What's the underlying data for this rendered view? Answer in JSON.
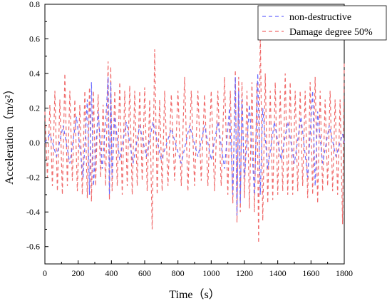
{
  "chart_data": {
    "type": "line",
    "title": "",
    "xlabel": "Time（s）",
    "ylabel": "Acceleration（m/s²）",
    "xlim": [
      0,
      1800
    ],
    "ylim": [
      -0.7,
      0.8
    ],
    "xticks": [
      0,
      200,
      400,
      600,
      800,
      1000,
      1200,
      1400,
      1600,
      1800
    ],
    "yticks": [
      -0.6,
      -0.4,
      -0.2,
      0.0,
      0.2,
      0.4,
      0.6,
      0.8
    ],
    "xtick_labels": [
      "0",
      "200",
      "400",
      "600",
      "800",
      "1000",
      "1200",
      "1400",
      "1600",
      "1800"
    ],
    "ytick_labels": [
      "-0.6",
      "-0.4",
      "-0.2",
      "0.0",
      "0.2",
      "0.4",
      "0.6",
      "0.8"
    ],
    "grid": false,
    "legend_position": "top-right",
    "series": [
      {
        "name": "non-destructive",
        "color": "#6b6bff",
        "style": "dashed",
        "x": [
          0,
          30,
          70,
          110,
          150,
          190,
          230,
          255,
          268,
          280,
          292,
          320,
          345,
          370,
          380,
          388,
          396,
          404,
          420,
          450,
          490,
          530,
          570,
          610,
          650,
          700,
          760,
          820,
          870,
          920,
          960,
          1000,
          1040,
          1080,
          1110,
          1130,
          1145,
          1155,
          1165,
          1175,
          1185,
          1200,
          1230,
          1260,
          1280,
          1295,
          1310,
          1340,
          1380,
          1420,
          1460,
          1500,
          1540,
          1580,
          1610,
          1625,
          1640,
          1670,
          1710,
          1750,
          1790,
          1800
        ],
        "y": [
          0.0,
          0.05,
          -0.08,
          0.1,
          -0.12,
          0.15,
          -0.2,
          0.25,
          -0.3,
          0.35,
          -0.25,
          0.18,
          -0.15,
          0.2,
          0.38,
          -0.3,
          0.35,
          -0.2,
          0.15,
          -0.1,
          0.12,
          -0.12,
          0.1,
          -0.08,
          0.12,
          -0.1,
          0.08,
          -0.12,
          0.1,
          -0.08,
          0.1,
          -0.1,
          0.12,
          -0.15,
          0.2,
          -0.3,
          0.38,
          -0.42,
          0.3,
          -0.35,
          0.25,
          -0.2,
          0.22,
          -0.3,
          0.4,
          -0.3,
          0.2,
          -0.15,
          0.12,
          -0.1,
          0.12,
          -0.12,
          0.15,
          -0.2,
          0.3,
          -0.25,
          0.18,
          -0.12,
          0.1,
          -0.08,
          0.05,
          0.0
        ]
      },
      {
        "name": "Damage degree 50%",
        "color": "#f06a6a",
        "style": "dashed",
        "x": [
          0,
          15,
          30,
          45,
          60,
          75,
          90,
          105,
          120,
          135,
          150,
          165,
          180,
          195,
          210,
          225,
          240,
          255,
          268,
          280,
          292,
          305,
          320,
          335,
          350,
          365,
          380,
          388,
          396,
          404,
          420,
          435,
          450,
          465,
          480,
          495,
          510,
          525,
          540,
          555,
          570,
          585,
          600,
          615,
          630,
          645,
          660,
          675,
          690,
          705,
          720,
          740,
          760,
          780,
          800,
          820,
          840,
          860,
          880,
          900,
          920,
          940,
          960,
          980,
          1000,
          1020,
          1040,
          1060,
          1080,
          1100,
          1115,
          1130,
          1145,
          1155,
          1165,
          1175,
          1185,
          1200,
          1215,
          1230,
          1245,
          1260,
          1275,
          1285,
          1295,
          1310,
          1325,
          1340,
          1355,
          1370,
          1385,
          1400,
          1415,
          1430,
          1445,
          1460,
          1475,
          1490,
          1505,
          1520,
          1535,
          1550,
          1565,
          1580,
          1595,
          1610,
          1625,
          1640,
          1655,
          1670,
          1685,
          1700,
          1715,
          1730,
          1745,
          1760,
          1775,
          1790,
          1800
        ],
        "y": [
          0.18,
          -0.2,
          0.22,
          -0.25,
          0.3,
          -0.28,
          0.25,
          -0.3,
          0.4,
          -0.25,
          0.3,
          -0.22,
          0.25,
          -0.28,
          0.22,
          -0.3,
          0.3,
          -0.32,
          0.32,
          -0.34,
          0.3,
          -0.25,
          0.28,
          -0.2,
          0.22,
          -0.25,
          0.47,
          -0.33,
          0.44,
          -0.28,
          0.3,
          -0.25,
          0.35,
          -0.3,
          0.3,
          -0.25,
          0.33,
          -0.3,
          0.3,
          -0.25,
          0.3,
          -0.22,
          0.32,
          -0.28,
          0.25,
          -0.5,
          0.54,
          -0.3,
          0.25,
          -0.28,
          0.3,
          -0.25,
          0.28,
          -0.22,
          0.3,
          -0.25,
          0.38,
          -0.28,
          0.3,
          -0.25,
          0.3,
          -0.22,
          0.28,
          -0.25,
          0.3,
          -0.28,
          0.3,
          -0.25,
          0.38,
          -0.3,
          0.3,
          -0.35,
          0.42,
          -0.46,
          0.38,
          -0.4,
          0.35,
          -0.32,
          0.3,
          -0.38,
          0.35,
          -0.4,
          0.35,
          -0.58,
          0.65,
          -0.45,
          0.4,
          -0.35,
          0.3,
          -0.33,
          0.35,
          -0.3,
          0.3,
          -0.28,
          0.4,
          -0.3,
          0.35,
          -0.3,
          0.3,
          -0.28,
          0.3,
          -0.25,
          0.3,
          -0.32,
          0.35,
          -0.3,
          0.38,
          -0.35,
          0.3,
          -0.28,
          0.25,
          -0.25,
          0.3,
          -0.28,
          0.25,
          -0.3,
          0.25,
          -0.47,
          0.47
        ]
      }
    ]
  }
}
